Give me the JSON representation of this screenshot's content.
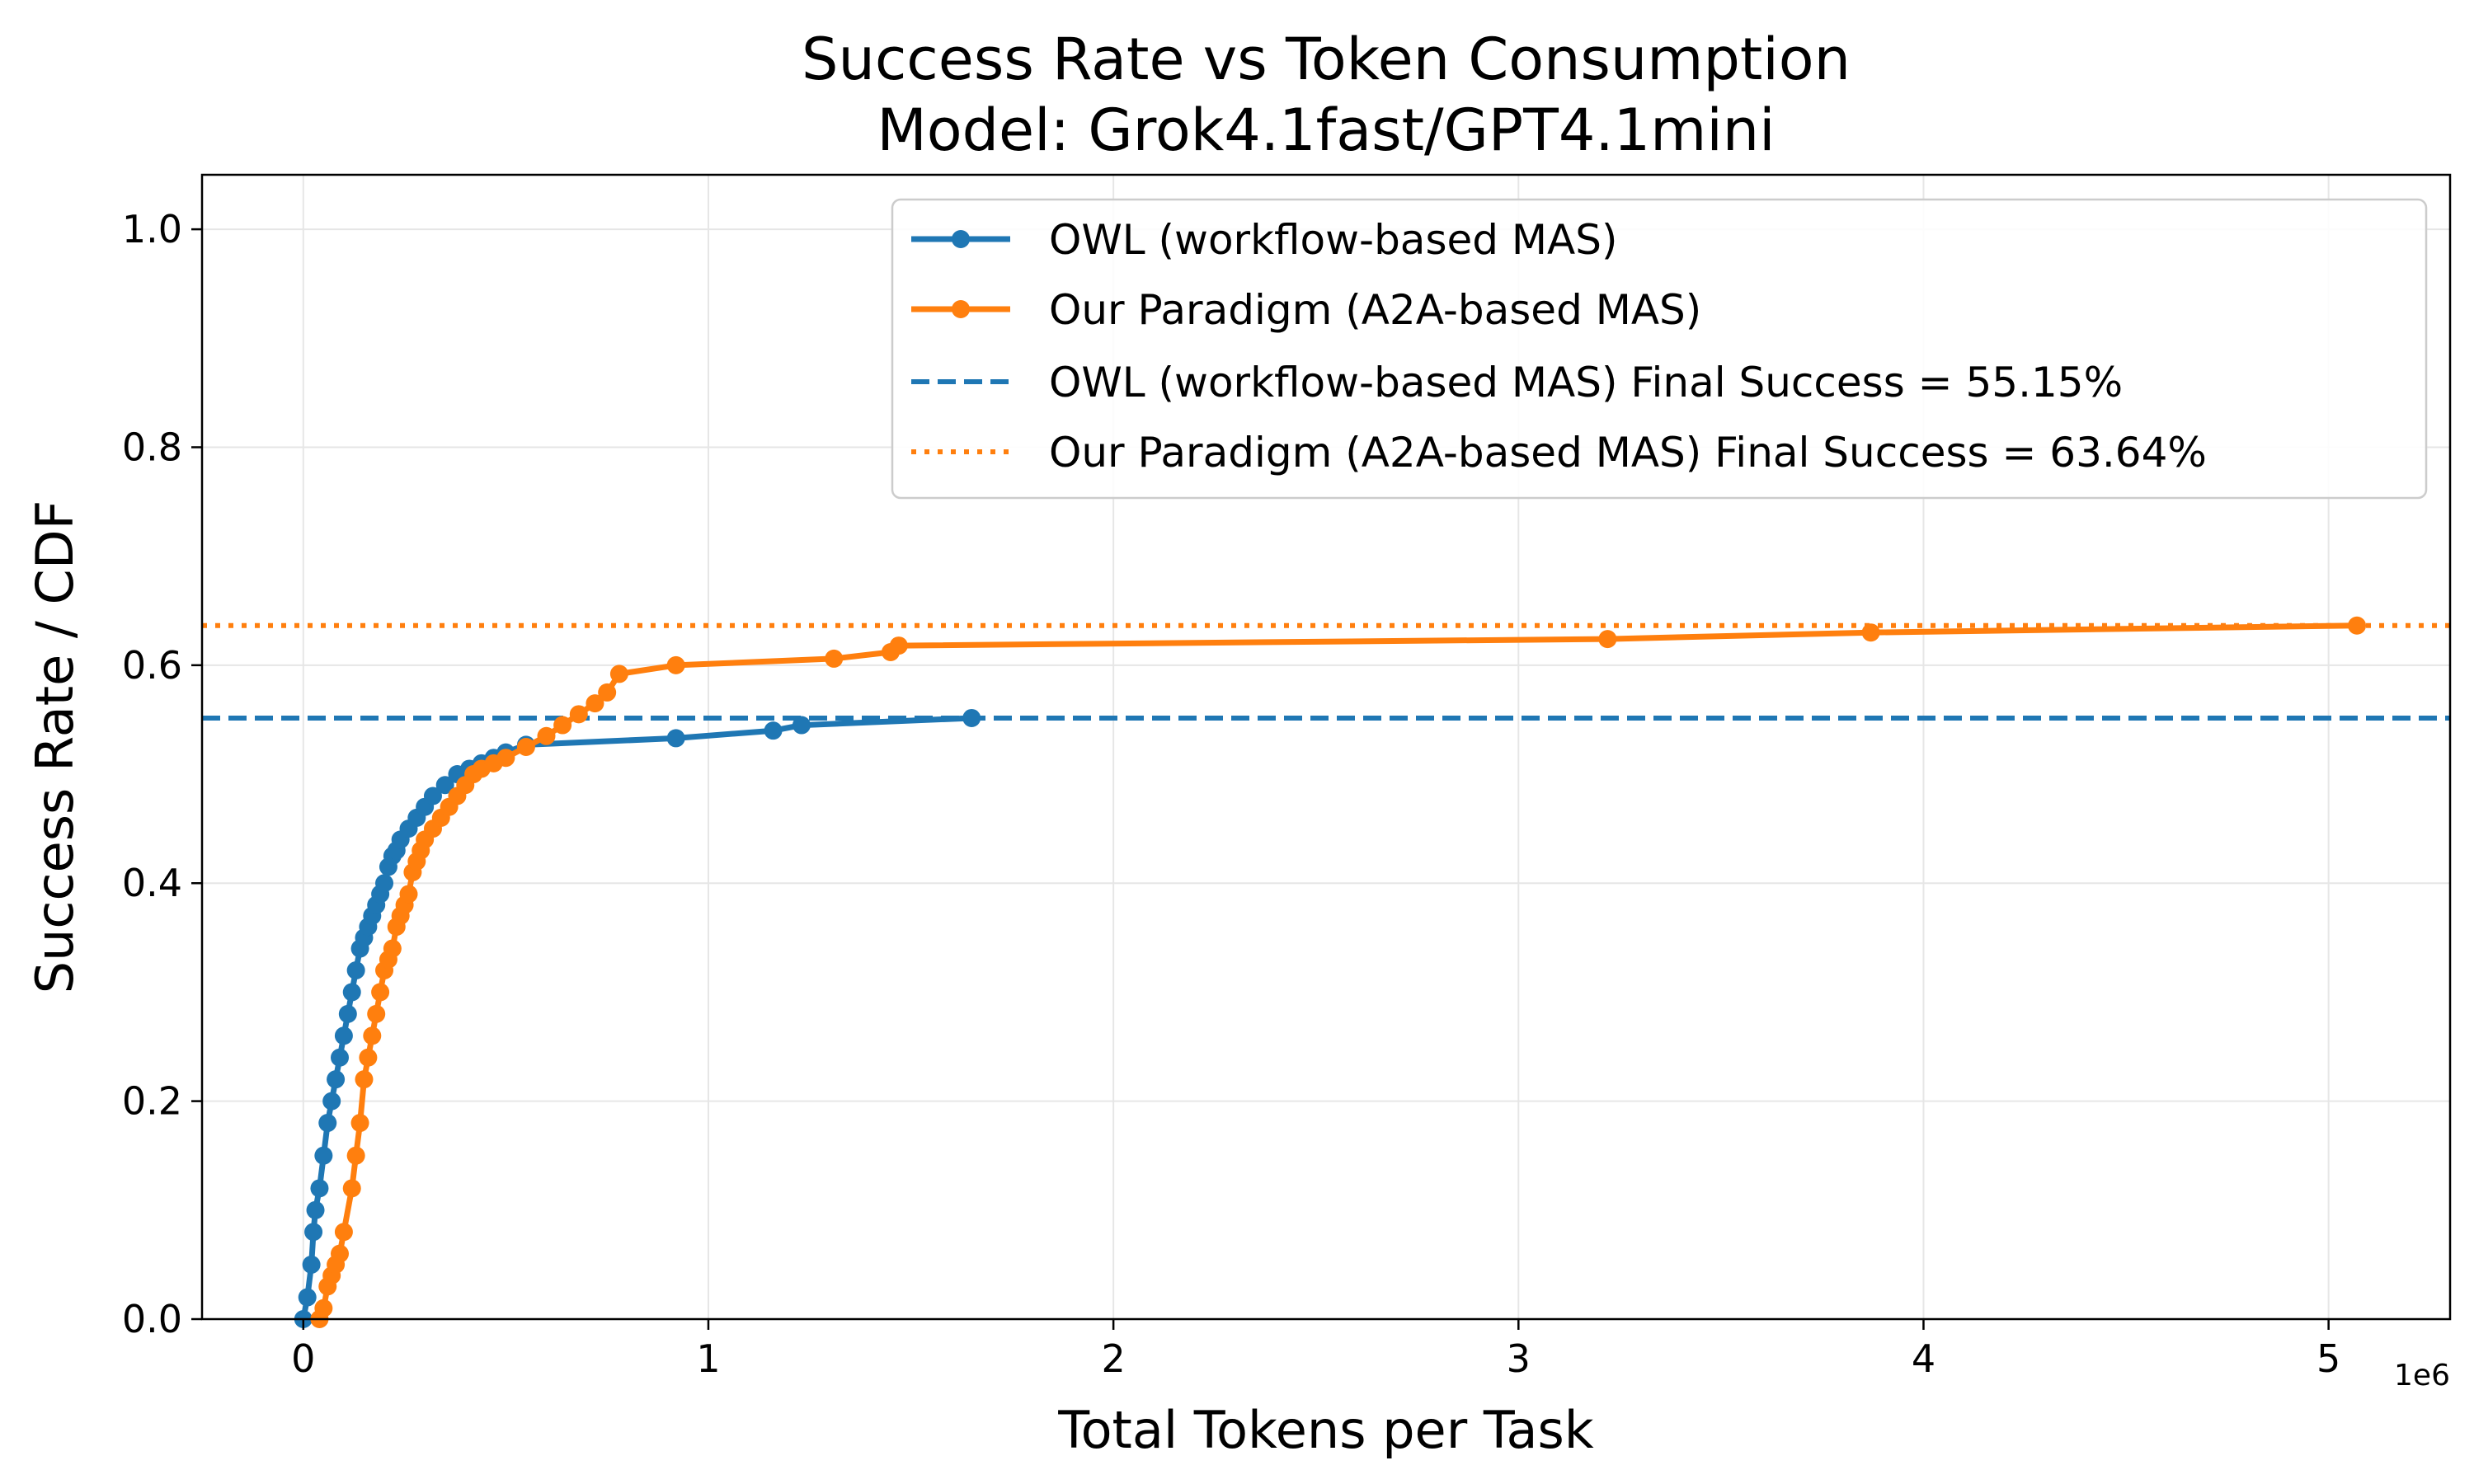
{
  "chart_data": {
    "type": "line",
    "title": "Success Rate vs Token Consumption",
    "subtitle": "Model: Grok4.1fast/GPT4.1mini",
    "xlabel": "Total Tokens per Task",
    "ylabel": "Success Rate / CDF",
    "x_offset_label": "1e6",
    "xlim": [
      -0.25,
      5.3
    ],
    "ylim": [
      0.0,
      1.05
    ],
    "x_unit_multiplier": 1000000,
    "xticks": [
      0,
      1,
      2,
      3,
      4,
      5
    ],
    "xtick_labels": [
      "0",
      "1",
      "2",
      "3",
      "4",
      "5"
    ],
    "yticks": [
      0.0,
      0.2,
      0.4,
      0.6,
      0.8,
      1.0
    ],
    "ytick_labels": [
      "0.0",
      "0.2",
      "0.4",
      "0.6",
      "0.8",
      "1.0"
    ],
    "grid": true,
    "legend_position": "top-right",
    "series": [
      {
        "name": "OWL (workflow-based MAS)",
        "color": "#1f77b4",
        "style": "solid-marker",
        "x": [
          0.0,
          0.01,
          0.02,
          0.025,
          0.03,
          0.04,
          0.05,
          0.06,
          0.07,
          0.08,
          0.09,
          0.1,
          0.11,
          0.12,
          0.13,
          0.14,
          0.15,
          0.16,
          0.17,
          0.18,
          0.19,
          0.2,
          0.21,
          0.22,
          0.23,
          0.24,
          0.26,
          0.28,
          0.3,
          0.32,
          0.35,
          0.38,
          0.41,
          0.44,
          0.47,
          0.5,
          0.55,
          0.92,
          1.16,
          1.23,
          1.65
        ],
        "y": [
          0.0,
          0.02,
          0.05,
          0.08,
          0.1,
          0.12,
          0.15,
          0.18,
          0.2,
          0.22,
          0.24,
          0.26,
          0.28,
          0.3,
          0.32,
          0.34,
          0.35,
          0.36,
          0.37,
          0.38,
          0.39,
          0.4,
          0.415,
          0.425,
          0.43,
          0.44,
          0.45,
          0.46,
          0.47,
          0.48,
          0.49,
          0.5,
          0.505,
          0.51,
          0.515,
          0.52,
          0.527,
          0.533,
          0.54,
          0.545,
          0.5515
        ]
      },
      {
        "name": "Our Paradigm (A2A-based MAS)",
        "color": "#ff7f0e",
        "style": "solid-marker",
        "x": [
          0.04,
          0.05,
          0.06,
          0.07,
          0.08,
          0.09,
          0.1,
          0.12,
          0.13,
          0.14,
          0.15,
          0.16,
          0.17,
          0.18,
          0.19,
          0.2,
          0.21,
          0.22,
          0.23,
          0.24,
          0.25,
          0.26,
          0.27,
          0.28,
          0.29,
          0.3,
          0.32,
          0.34,
          0.36,
          0.38,
          0.4,
          0.42,
          0.44,
          0.47,
          0.5,
          0.55,
          0.6,
          0.64,
          0.68,
          0.72,
          0.75,
          0.78,
          0.92,
          1.31,
          1.45,
          1.47,
          3.22,
          3.87,
          5.07
        ],
        "y": [
          0.0,
          0.01,
          0.03,
          0.04,
          0.05,
          0.06,
          0.08,
          0.12,
          0.15,
          0.18,
          0.22,
          0.24,
          0.26,
          0.28,
          0.3,
          0.32,
          0.33,
          0.34,
          0.36,
          0.37,
          0.38,
          0.39,
          0.41,
          0.42,
          0.43,
          0.44,
          0.45,
          0.46,
          0.47,
          0.48,
          0.49,
          0.5,
          0.505,
          0.51,
          0.515,
          0.525,
          0.535,
          0.545,
          0.555,
          0.565,
          0.575,
          0.592,
          0.6,
          0.606,
          0.612,
          0.618,
          0.624,
          0.63,
          0.6364
        ]
      }
    ],
    "reference_lines": [
      {
        "name": "OWL (workflow-based MAS) Final Success = 55.15%",
        "y": 0.5515,
        "color": "#1f77b4",
        "style": "dashed"
      },
      {
        "name": "Our Paradigm (A2A-based MAS) Final Success = 63.64%",
        "y": 0.6364,
        "color": "#ff7f0e",
        "style": "dotted"
      }
    ]
  }
}
